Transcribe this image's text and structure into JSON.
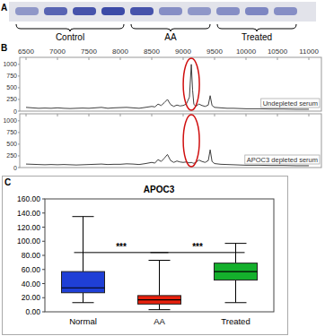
{
  "chart_data": [
    {
      "type": "gel",
      "panel": "A",
      "series": [
        {
          "name": "Control",
          "values": [
            0.45,
            0.75,
            0.85,
            0.9
          ]
        },
        {
          "name": "AA",
          "values": [
            0.85,
            0.5,
            0.45
          ]
        },
        {
          "name": "Treated",
          "values": [
            0.5,
            0.55,
            0.5
          ]
        }
      ]
    },
    {
      "type": "line",
      "panel": "B",
      "x": [
        6500,
        6600,
        6700,
        6800,
        6900,
        7000,
        7100,
        7200,
        7300,
        7400,
        7500,
        7600,
        7700,
        7800,
        7900,
        8000,
        8100,
        8200,
        8300,
        8400,
        8500,
        8550,
        8600,
        8650,
        8700,
        8750,
        8800,
        8850,
        8900,
        8950,
        9000,
        9050,
        9100,
        9130,
        9150,
        9170,
        9200,
        9250,
        9300,
        9350,
        9400,
        9430,
        9460,
        9500,
        9600,
        9700,
        9800,
        9900,
        10000,
        10200,
        10400,
        10600,
        10800,
        11000
      ],
      "series": [
        {
          "name": "Undepleted serum",
          "color": "#404040",
          "values": [
            80,
            70,
            60,
            65,
            60,
            70,
            60,
            55,
            60,
            65,
            60,
            70,
            80,
            60,
            70,
            75,
            80,
            70,
            60,
            80,
            100,
            90,
            150,
            120,
            180,
            250,
            140,
            100,
            130,
            110,
            120,
            150,
            300,
            1000,
            450,
            150,
            100,
            150,
            120,
            100,
            130,
            330,
            120,
            80,
            70,
            60,
            60,
            55,
            50,
            50,
            45,
            45,
            40,
            40
          ]
        },
        {
          "name": "APOC3 depleted serum",
          "color": "#404040",
          "values": [
            75,
            70,
            65,
            60,
            65,
            60,
            65,
            60,
            55,
            60,
            65,
            70,
            75,
            65,
            70,
            70,
            80,
            75,
            65,
            85,
            110,
            95,
            170,
            130,
            200,
            280,
            150,
            110,
            140,
            120,
            110,
            120,
            100,
            110,
            100,
            90,
            110,
            160,
            130,
            110,
            150,
            380,
            130,
            85,
            70,
            65,
            60,
            55,
            50,
            50,
            45,
            45,
            40,
            40
          ]
        }
      ],
      "xlim": [
        6400,
        11200
      ],
      "xticks": [
        6500,
        7000,
        7500,
        8000,
        8500,
        9000,
        9500,
        10000,
        10500,
        11000
      ],
      "ylim": [
        0,
        1150
      ],
      "yticks": [
        0,
        250,
        500,
        750,
        1000
      ]
    },
    {
      "type": "box",
      "panel": "C",
      "title": "APOC3",
      "categories": [
        "Normal",
        "AA",
        "Treated"
      ],
      "colors": [
        "#1f3fd6",
        "#e8200c",
        "#14b02c"
      ],
      "min": [
        13,
        3,
        13
      ],
      "q1": [
        27,
        11,
        45
      ],
      "median": [
        34,
        17,
        57
      ],
      "q3": [
        57,
        23,
        69
      ],
      "max": [
        135,
        73,
        97
      ],
      "ylim": [
        0,
        160
      ],
      "yticks": [
        {
          "value": 0,
          "label": "0.00"
        },
        {
          "value": 20,
          "label": "20.00"
        },
        {
          "value": 40,
          "label": "40.00"
        },
        {
          "value": 60,
          "label": "60.00"
        },
        {
          "value": 80,
          "label": "80.00"
        },
        {
          "value": 100,
          "label": "100.00"
        },
        {
          "value": 120,
          "label": "120.00"
        },
        {
          "value": 140,
          "label": "140.00"
        },
        {
          "value": 160,
          "label": "160.00"
        }
      ],
      "annotations": [
        {
          "text": "***",
          "from": 0,
          "to": 1,
          "y": 84
        },
        {
          "text": "***",
          "from": 1,
          "to": 2,
          "y": 84
        }
      ]
    }
  ]
}
